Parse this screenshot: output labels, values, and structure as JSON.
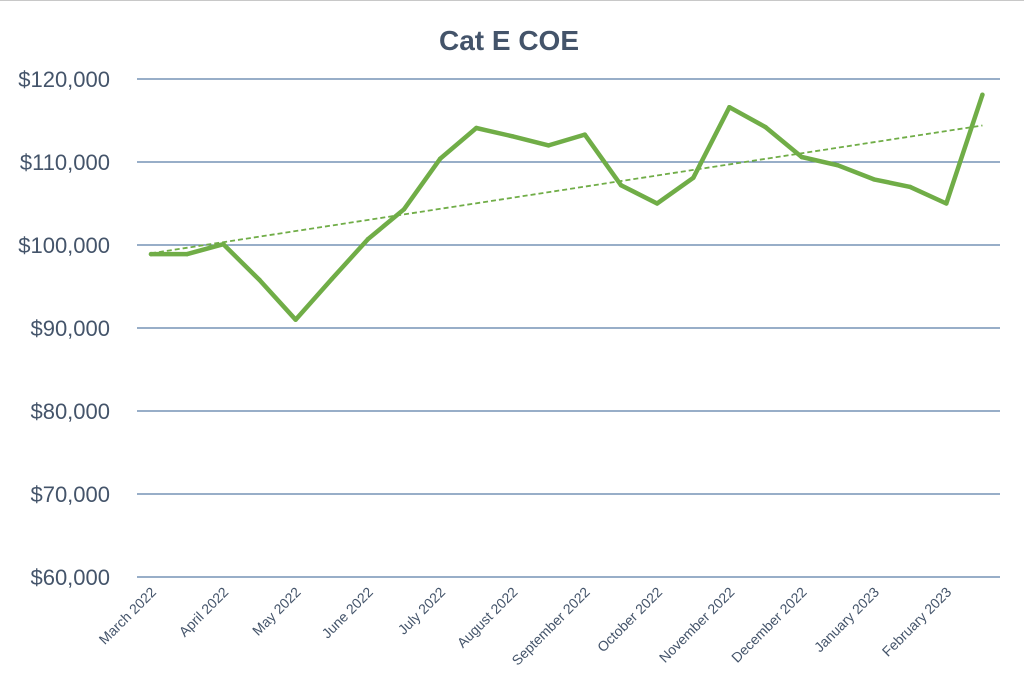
{
  "chart_data": {
    "type": "line",
    "title": "Cat E COE",
    "xlabel": "",
    "ylabel": "",
    "ylim": [
      60000,
      120000
    ],
    "yticks": [
      {
        "value": 120000,
        "label": "$120,000"
      },
      {
        "value": 110000,
        "label": "$110,000"
      },
      {
        "value": 100000,
        "label": "$100,000"
      },
      {
        "value": 90000,
        "label": "$90,000"
      },
      {
        "value": 80000,
        "label": "$80,000"
      },
      {
        "value": 70000,
        "label": "$70,000"
      },
      {
        "value": 60000,
        "label": "$60,000"
      }
    ],
    "x_tick_labels": [
      "March 2022",
      "April 2022",
      "May 2022",
      "June 2022",
      "July 2022",
      "August 2022",
      "September 2022",
      "October 2022",
      "November 2022",
      "December 2022",
      "January 2023",
      "February 2023"
    ],
    "series": [
      {
        "color": "#70ad47",
        "values": [
          98900,
          98900,
          100100,
          95800,
          91000,
          95900,
          100700,
          104300,
          110400,
          114100,
          113100,
          112000,
          113300,
          107200,
          105000,
          108100,
          116600,
          114200,
          110600,
          109600,
          107900,
          107000,
          105000,
          118100
        ]
      }
    ],
    "trendline": {
      "style": "dashed",
      "color": "#70ad47",
      "start": 99000,
      "end": 114400
    },
    "grid": true,
    "legend": "none"
  }
}
